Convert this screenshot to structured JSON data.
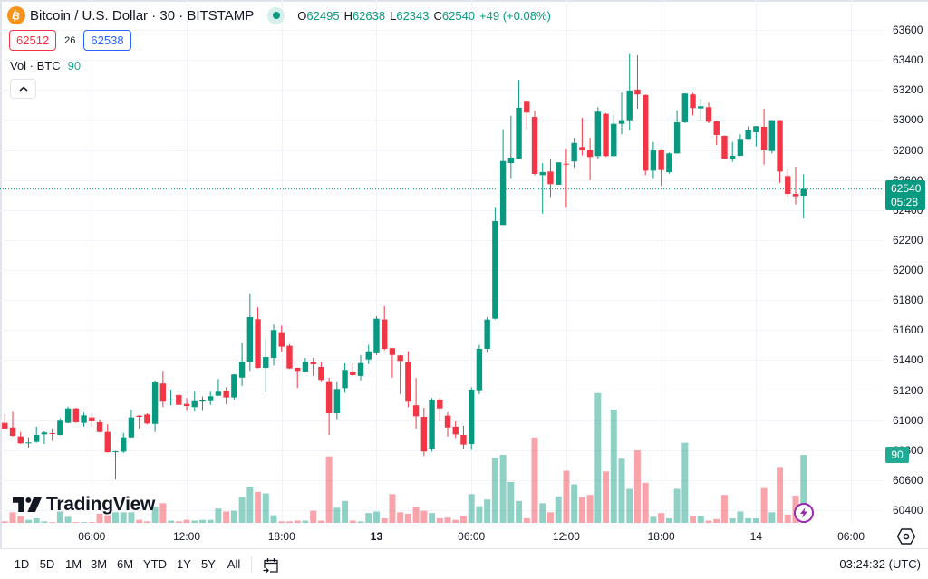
{
  "header": {
    "symbol_icon": "bitcoin-icon",
    "title": "Bitcoin / U.S. Dollar · 30 · BITSTAMP",
    "market_status_icon": "market-open-dot-icon",
    "ohlc": {
      "o_label": "O",
      "o": "62495",
      "h_label": "H",
      "h": "62638",
      "l_label": "L",
      "l": "62343",
      "c_label": "C",
      "c": "62540",
      "change": "+49 (+0.08%)"
    },
    "sell_price": "62512",
    "spread": "26",
    "buy_price": "62538",
    "volume_indicator": {
      "label": "Vol · BTC",
      "value": "90"
    },
    "collapse_icon": "chevron-up-icon"
  },
  "price_axis": {
    "labels": [
      "63600",
      "63400",
      "63200",
      "63000",
      "62800",
      "62600",
      "62400",
      "62200",
      "62000",
      "61800",
      "61600",
      "61400",
      "61200",
      "61000",
      "60800",
      "60600",
      "60400"
    ],
    "last_price": "62540",
    "countdown": "05:28",
    "volume_tag": "90",
    "settings_icon": "gear-icon"
  },
  "branding": {
    "logo_text": "TradingView"
  },
  "alert_icon": "lightning-icon",
  "toolbar": {
    "ranges": [
      "1D",
      "5D",
      "1M",
      "3M",
      "6M",
      "YTD",
      "1Y",
      "5Y",
      "All"
    ],
    "date_range_icon": "calendar-goto-icon",
    "clock": "03:24:32 (UTC)"
  },
  "colors": {
    "up": "#089981",
    "down": "#f23645",
    "volume_up": "rgba(8,153,129,0.45)",
    "volume_down": "rgba(242,54,69,0.45)",
    "accent_blue": "#2962ff",
    "bitcoin_orange": "#f7931a",
    "alert_purple": "#9c27b0",
    "grid": "#f0f3fa"
  },
  "chart_data": {
    "type": "candlestick",
    "title": "Bitcoin / U.S. Dollar · 30 · BITSTAMP",
    "interval_minutes": 30,
    "xlabel": "",
    "ylabel": "",
    "ylim": [
      60400,
      63600
    ],
    "y_ticks": [
      63600,
      63400,
      63200,
      63000,
      62800,
      62600,
      62400,
      62200,
      62000,
      61800,
      61600,
      61400,
      61200,
      61000,
      60800,
      60600,
      60400
    ],
    "x_ticks": [
      {
        "label": "06:00",
        "bar_index": 11,
        "bold": false
      },
      {
        "label": "12:00",
        "bar_index": 23,
        "bold": false
      },
      {
        "label": "18:00",
        "bar_index": 35,
        "bold": false
      },
      {
        "label": "13",
        "bar_index": 47,
        "bold": true
      },
      {
        "label": "06:00",
        "bar_index": 59,
        "bold": false
      },
      {
        "label": "12:00",
        "bar_index": 71,
        "bold": false
      },
      {
        "label": "18:00",
        "bar_index": 83,
        "bold": false
      },
      {
        "label": "14",
        "bar_index": 95,
        "bold": false
      },
      {
        "label": "06:00",
        "bar_index": 107,
        "bold": false
      }
    ],
    "grid": true,
    "last_price": 62540,
    "ohlc_format": [
      "open",
      "high",
      "low",
      "close"
    ],
    "candles_ohlc": [
      [
        60982,
        61042,
        60937,
        60942
      ],
      [
        60951,
        61056,
        60891,
        60895
      ],
      [
        60891,
        60921,
        60841,
        60845
      ],
      [
        60845,
        60885,
        60817,
        60851
      ],
      [
        60855,
        60956,
        60849,
        60901
      ],
      [
        60905,
        60925,
        60841,
        60918
      ],
      [
        60913,
        60945,
        60861,
        60907
      ],
      [
        60901,
        61012,
        60898,
        60996
      ],
      [
        60982,
        61090,
        60980,
        61078
      ],
      [
        61078,
        61082,
        60982,
        60986
      ],
      [
        60982,
        61050,
        60956,
        61032
      ],
      [
        61018,
        61042,
        60957,
        60992
      ],
      [
        60986,
        61006,
        60918,
        60921
      ],
      [
        60921,
        60972,
        60783,
        60786
      ],
      [
        60786,
        60795,
        60604,
        60792
      ],
      [
        60790,
        60915,
        60780,
        60885
      ],
      [
        60885,
        61068,
        60881,
        61018
      ],
      [
        61030,
        61034,
        60942,
        61022
      ],
      [
        61038,
        61046,
        60972,
        60978
      ],
      [
        60975,
        61263,
        60921,
        61251
      ],
      [
        61244,
        61328,
        61087,
        61123
      ],
      [
        61131,
        61203,
        61099,
        61137
      ],
      [
        61167,
        61173,
        61099,
        61102
      ],
      [
        61108,
        61147,
        61062,
        61094
      ],
      [
        61087,
        61189,
        61058,
        61126
      ],
      [
        61123,
        61157,
        61062,
        61131
      ],
      [
        61126,
        61189,
        61102,
        61159
      ],
      [
        61163,
        61274,
        61160,
        61189
      ],
      [
        61195,
        61219,
        61106,
        61151
      ],
      [
        61151,
        61306,
        61135,
        61304
      ],
      [
        61283,
        61515,
        61227,
        61388
      ],
      [
        61388,
        61843,
        61328,
        61686
      ],
      [
        61672,
        61751,
        61345,
        61348
      ],
      [
        61348,
        61545,
        61183,
        61420
      ],
      [
        61414,
        61636,
        61364,
        61600
      ],
      [
        61585,
        61630,
        61455,
        61489
      ],
      [
        61495,
        61505,
        61340,
        61344
      ],
      [
        61348,
        61350,
        61213,
        61328
      ],
      [
        61324,
        61414,
        61318,
        61388
      ],
      [
        61384,
        61414,
        61294,
        61372
      ],
      [
        61354,
        61384,
        61253,
        61268
      ],
      [
        61253,
        61283,
        60901,
        61046
      ],
      [
        61046,
        61253,
        61006,
        61207
      ],
      [
        61213,
        61378,
        61183,
        61334
      ],
      [
        61324,
        61378,
        61292,
        61300
      ],
      [
        61294,
        61434,
        61263,
        61380
      ],
      [
        61404,
        61501,
        61374,
        61458
      ],
      [
        61445,
        61692,
        61434,
        61676
      ],
      [
        61670,
        61759,
        61465,
        61475
      ],
      [
        61479,
        61482,
        61283,
        61434
      ],
      [
        61431,
        61434,
        61173,
        61394
      ],
      [
        61384,
        61459,
        61087,
        61123
      ],
      [
        61099,
        61280,
        60942,
        61026
      ],
      [
        61022,
        61082,
        60761,
        60791
      ],
      [
        60809,
        61147,
        60791,
        61132
      ],
      [
        61137,
        61147,
        60992,
        61078
      ],
      [
        61030,
        61052,
        60891,
        60951
      ],
      [
        60956,
        60992,
        60881,
        60905
      ],
      [
        60901,
        60962,
        60805,
        60837
      ],
      [
        60841,
        61219,
        60801,
        61203
      ],
      [
        61199,
        61501,
        61173,
        61475
      ],
      [
        61475,
        61686,
        61449,
        61670
      ],
      [
        61676,
        62415,
        61670,
        62326
      ],
      [
        62300,
        62938,
        62300,
        62726
      ],
      [
        62712,
        63028,
        62612,
        62749
      ],
      [
        62743,
        63266,
        62738,
        63081
      ],
      [
        63121,
        63135,
        62940,
        63049
      ],
      [
        63020,
        63061,
        62632,
        62640
      ],
      [
        62632,
        62712,
        62376,
        62652
      ],
      [
        62656,
        62737,
        62487,
        62572
      ],
      [
        62568,
        62717,
        62568,
        62717
      ],
      [
        62708,
        62809,
        62415,
        62702
      ],
      [
        62723,
        62880,
        62682,
        62847
      ],
      [
        62819,
        63014,
        62763,
        62799
      ],
      [
        62799,
        62880,
        62598,
        62753
      ],
      [
        62759,
        63085,
        62743,
        63055
      ],
      [
        63040,
        63045,
        62755,
        62759
      ],
      [
        62759,
        63034,
        62755,
        62974
      ],
      [
        62974,
        63182,
        62904,
        62998
      ],
      [
        62998,
        63441,
        62928,
        63196
      ],
      [
        63202,
        63431,
        63075,
        63170
      ],
      [
        63166,
        63170,
        62632,
        62662
      ],
      [
        62662,
        62853,
        62612,
        62803
      ],
      [
        62803,
        62806,
        62561,
        62666
      ],
      [
        62652,
        62783,
        62642,
        62777
      ],
      [
        62777,
        63064,
        62775,
        62984
      ],
      [
        62984,
        63178,
        62980,
        63176
      ],
      [
        63170,
        63180,
        63031,
        63079
      ],
      [
        63077,
        63141,
        62994,
        63091
      ],
      [
        63085,
        63115,
        62978,
        62988
      ],
      [
        62990,
        62992,
        62833,
        62900
      ],
      [
        62894,
        62896,
        62740,
        62743
      ],
      [
        62741,
        62853,
        62720,
        62761
      ],
      [
        62761,
        62904,
        62758,
        62874
      ],
      [
        62874,
        62958,
        62872,
        62930
      ],
      [
        62918,
        62960,
        62823,
        62958
      ],
      [
        62954,
        63075,
        62702,
        62803
      ],
      [
        62793,
        63000,
        62777,
        62998
      ],
      [
        62998,
        63000,
        62581,
        62656
      ],
      [
        62626,
        62672,
        62491,
        62507
      ],
      [
        62507,
        62688,
        62437,
        62491
      ],
      [
        62495,
        62638,
        62343,
        62540
      ]
    ],
    "volume": [
      2,
      14,
      9,
      4,
      6,
      2,
      1,
      15,
      8,
      1,
      1,
      1,
      12,
      10,
      14,
      14,
      14,
      4,
      2,
      21,
      26,
      3,
      2,
      4,
      3,
      4,
      4,
      19,
      15,
      16,
      34,
      48,
      41,
      39,
      10,
      2,
      2,
      3,
      3,
      16,
      3,
      88,
      20,
      29,
      3,
      2,
      13,
      15,
      6,
      38,
      14,
      12,
      21,
      16,
      13,
      6,
      7,
      4,
      9,
      38,
      22,
      31,
      86,
      90,
      54,
      29,
      6,
      113,
      26,
      14,
      35,
      69,
      51,
      34,
      37,
      172,
      68,
      150,
      85,
      45,
      96,
      53,
      8,
      13,
      6,
      45,
      106,
      9,
      9,
      3,
      5,
      37,
      6,
      15,
      6,
      6,
      46,
      14,
      74,
      11,
      36,
      90
    ]
  }
}
